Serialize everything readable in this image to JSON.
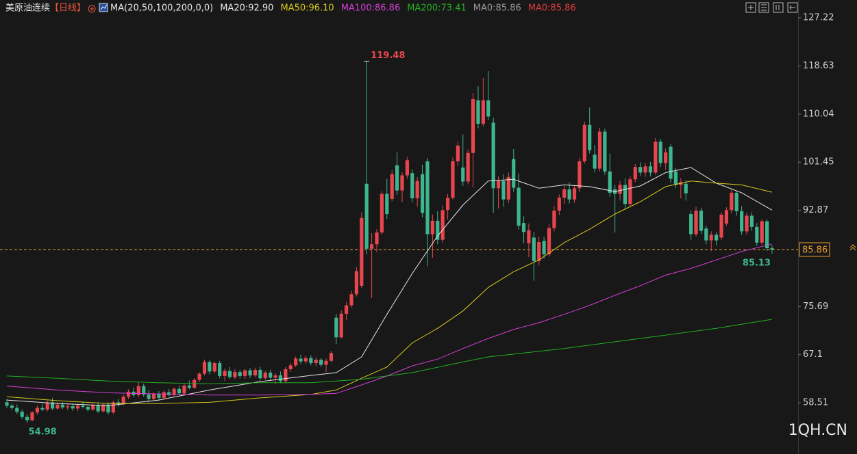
{
  "chart_data": {
    "type": "candlestick",
    "title": "美原油连续",
    "period": "【日线】",
    "indicator": "MA(20,50,100,200,0,0)",
    "up_color": "#e8464f",
    "down_color": "#3db58e",
    "last_price_color": "#f0a030",
    "watermark": "1QH.CN",
    "ylim": [
      50,
      128
    ],
    "yticks": [
      127.22,
      118.63,
      110.04,
      101.45,
      92.87,
      75.69,
      67.1,
      58.51
    ],
    "grid": false,
    "open": [
      58.6,
      58.0,
      57.6,
      56.9,
      56.0,
      55.4,
      56.8,
      57.6,
      57.3,
      58.6,
      57.5,
      58.2,
      57.7,
      57.9,
      57.5,
      58.0,
      57.8,
      57.3,
      58.1,
      57.0,
      58.2,
      56.8,
      58.6,
      58.3,
      59.6,
      60.5,
      59.9,
      61.5,
      60.0,
      59.2,
      60.1,
      59.4,
      60.4,
      59.9,
      61.0,
      60.2,
      61.6,
      61.2,
      62.6,
      63.7,
      65.8,
      64.1,
      65.6,
      63.3,
      64.2,
      63.1,
      64.0,
      63.3,
      64.3,
      63.4,
      64.4,
      62.9,
      63.9,
      63.0,
      63.4,
      62.4,
      64.5,
      65.2,
      66.4,
      65.9,
      66.5,
      65.6,
      66.2,
      65.3,
      66.0,
      73.7,
      70.2,
      74.4,
      75.9,
      77.9,
      79.4,
      97.6,
      86.0,
      86.8,
      88.9,
      95.8,
      94.9,
      100.9,
      96.4,
      99.1,
      99.5,
      95.0,
      99.3,
      101.6,
      88.6,
      91.0,
      87.6,
      92.9,
      95.1,
      101.6,
      100.5,
      98.0,
      103.1,
      112.5,
      108.3,
      112.5,
      108.5,
      96.8,
      98.1,
      94.8,
      102.0,
      96.9,
      90.6,
      87.0,
      88.0,
      83.8,
      87.4,
      85.0,
      89.7,
      92.8,
      95.1,
      96.6,
      94.8,
      96.8,
      101.6,
      108.1,
      102.8,
      100.3,
      106.9,
      99.8,
      96.6,
      95.8,
      97.4,
      94.0,
      98.4,
      100.6,
      99.6,
      100.7,
      99.6,
      105.1,
      101.3,
      104.2,
      99.8,
      97.4,
      97.6,
      92.2,
      88.6,
      92.8,
      89.6,
      87.5,
      88.5,
      88.0,
      90.5,
      92.9,
      96.0,
      92.7,
      89.1,
      91.9,
      89.9,
      87.1,
      90.9,
      86.1
    ],
    "high": [
      59.2,
      58.4,
      58.2,
      57.3,
      56.5,
      57.0,
      58.0,
      58.3,
      58.9,
      59.4,
      58.6,
      58.6,
      58.4,
      58.4,
      58.3,
      58.7,
      58.2,
      58.4,
      58.6,
      58.5,
      58.6,
      58.9,
      59.2,
      60.0,
      60.9,
      61.2,
      62.3,
      61.9,
      60.8,
      60.4,
      60.6,
      60.7,
      61.0,
      61.3,
      61.6,
      61.9,
      62.5,
      62.9,
      64.0,
      66.2,
      66.1,
      65.9,
      66.0,
      64.6,
      64.9,
      64.5,
      64.4,
      64.6,
      64.7,
      64.8,
      64.9,
      64.2,
      64.4,
      63.8,
      64.1,
      64.9,
      65.6,
      66.8,
      67.1,
      66.9,
      67.0,
      66.6,
      66.5,
      66.4,
      67.8,
      74.4,
      75.0,
      76.5,
      78.5,
      82.7,
      92.5,
      119.48,
      88.8,
      89.5,
      96.3,
      98.5,
      100.0,
      103.2,
      99.7,
      102.4,
      100.2,
      98.8,
      101.0,
      102.2,
      92.1,
      92.7,
      93.7,
      95.8,
      102.3,
      105.1,
      106.4,
      103.7,
      113.8,
      115.0,
      116.5,
      117.7,
      109.4,
      98.9,
      99.3,
      99.6,
      103.8,
      99.4,
      91.8,
      90.5,
      89.0,
      88.2,
      88.1,
      90.4,
      93.6,
      95.7,
      97.3,
      97.8,
      97.3,
      102.2,
      108.7,
      111.2,
      104.5,
      107.6,
      107.4,
      103.0,
      97.4,
      98.1,
      98.6,
      98.9,
      101.1,
      101.4,
      101.3,
      101.5,
      105.8,
      105.6,
      103.9,
      104.7,
      100.4,
      98.6,
      98.3,
      92.8,
      93.5,
      93.3,
      90.1,
      89.1,
      89.0,
      92.5,
      93.4,
      96.7,
      96.4,
      93.6,
      92.4,
      92.5,
      90.6,
      91.3,
      91.2,
      86.6
    ],
    "low": [
      57.6,
      57.2,
      56.5,
      55.6,
      54.98,
      55.2,
      56.4,
      57.0,
      57.0,
      57.2,
      57.3,
      57.4,
      57.2,
      57.1,
      57.0,
      57.5,
      56.9,
      57.1,
      56.7,
      56.8,
      56.4,
      56.5,
      57.8,
      58.0,
      59.2,
      59.5,
      59.5,
      59.6,
      58.6,
      58.9,
      59.0,
      59.1,
      59.6,
      59.7,
      59.8,
      60.0,
      60.9,
      61.0,
      62.2,
      63.4,
      63.6,
      63.8,
      62.9,
      62.4,
      62.8,
      62.7,
      62.9,
      62.8,
      62.9,
      63.1,
      62.5,
      62.6,
      62.6,
      61.9,
      62.0,
      62.0,
      64.0,
      64.9,
      65.4,
      65.5,
      65.2,
      65.1,
      64.9,
      64.0,
      65.7,
      69.0,
      70.0,
      73.3,
      75.5,
      77.5,
      79.0,
      85.0,
      77.2,
      85.4,
      88.5,
      91.3,
      94.5,
      95.6,
      94.3,
      98.5,
      94.3,
      93.5,
      91.6,
      82.9,
      84.4,
      86.8,
      87.1,
      91.2,
      94.8,
      100.8,
      97.2,
      97.5,
      96.9,
      107.5,
      107.8,
      109.0,
      92.4,
      93.2,
      93.5,
      94.2,
      96.2,
      89.4,
      87.0,
      84.5,
      80.3,
      83.0,
      84.2,
      84.6,
      89.1,
      92.0,
      94.0,
      94.1,
      94.2,
      96.1,
      101.2,
      103.0,
      99.6,
      99.8,
      99.2,
      95.3,
      88.9,
      94.6,
      93.0,
      93.6,
      97.9,
      99.0,
      98.8,
      98.9,
      99.2,
      100.6,
      100.1,
      97.8,
      96.8,
      95.0,
      94.6,
      87.6,
      88.2,
      88.6,
      86.8,
      85.6,
      86.6,
      87.6,
      90.1,
      92.3,
      91.9,
      88.5,
      88.6,
      89.2,
      86.5,
      86.7,
      85.6,
      85.13
    ],
    "close": [
      58.0,
      57.6,
      56.9,
      56.0,
      55.4,
      56.8,
      57.6,
      57.3,
      58.6,
      57.5,
      58.2,
      57.7,
      57.9,
      57.5,
      58.0,
      57.8,
      57.3,
      58.1,
      57.0,
      58.2,
      56.8,
      58.6,
      58.3,
      59.6,
      60.5,
      59.9,
      61.5,
      60.0,
      59.2,
      60.1,
      59.4,
      60.4,
      59.9,
      61.0,
      60.2,
      61.6,
      61.2,
      62.6,
      63.7,
      65.8,
      64.1,
      65.6,
      63.3,
      64.2,
      63.1,
      64.0,
      63.3,
      64.3,
      63.4,
      64.4,
      62.9,
      63.9,
      63.0,
      63.4,
      62.4,
      64.5,
      65.2,
      66.4,
      65.9,
      66.5,
      65.6,
      66.2,
      65.3,
      66.0,
      67.4,
      70.2,
      74.4,
      75.9,
      77.9,
      82.0,
      91.5,
      86.0,
      86.8,
      88.9,
      95.8,
      92.2,
      99.3,
      96.4,
      99.1,
      101.8,
      95.0,
      98.1,
      92.4,
      88.6,
      91.0,
      87.6,
      92.9,
      95.1,
      101.6,
      104.4,
      98.0,
      103.1,
      112.7,
      108.3,
      112.5,
      109.6,
      96.8,
      98.1,
      94.8,
      98.8,
      96.9,
      90.1,
      89.0,
      89.3,
      83.8,
      87.2,
      85.0,
      89.7,
      92.8,
      95.1,
      96.6,
      94.8,
      96.8,
      101.6,
      108.1,
      103.6,
      100.3,
      106.9,
      99.8,
      96.0,
      95.8,
      97.4,
      94.0,
      98.4,
      100.6,
      99.6,
      100.7,
      99.6,
      105.1,
      101.3,
      103.2,
      98.5,
      97.4,
      97.9,
      95.9,
      88.6,
      92.8,
      89.2,
      87.5,
      88.5,
      87.5,
      92.1,
      92.9,
      96.0,
      92.7,
      89.1,
      91.9,
      89.9,
      87.1,
      90.9,
      86.1,
      85.86
    ],
    "ma_lines": [
      {
        "name": "MA20:92.90",
        "color": "#e6e6e6",
        "x": [
          0,
          10,
          20,
          30,
          40,
          50,
          60,
          65,
          70,
          75,
          80,
          85,
          90,
          95,
          100,
          105,
          110,
          115,
          120,
          125,
          130,
          135,
          140,
          145,
          151
        ],
        "values": [
          59.0,
          58.4,
          58.0,
          59.0,
          60.8,
          62.3,
          63.4,
          63.9,
          66.7,
          74.3,
          81.6,
          88.3,
          93.8,
          98.1,
          98.4,
          96.8,
          97.4,
          97.1,
          96.2,
          97.2,
          99.6,
          100.5,
          97.7,
          96.0,
          92.9
        ]
      },
      {
        "name": "MA50:96.10",
        "color": "#d9c81e",
        "x": [
          0,
          10,
          20,
          30,
          40,
          50,
          60,
          65,
          70,
          75,
          80,
          85,
          90,
          95,
          100,
          105,
          110,
          115,
          120,
          125,
          130,
          135,
          140,
          145,
          151
        ],
        "values": [
          59.6,
          58.9,
          58.4,
          58.4,
          58.6,
          59.4,
          60.0,
          60.8,
          62.9,
          64.9,
          69.2,
          71.8,
          74.9,
          79.1,
          81.9,
          84.0,
          87.1,
          89.5,
          92.2,
          94.4,
          97.1,
          98.1,
          97.7,
          97.4,
          96.1
        ]
      },
      {
        "name": "MA100:86.86",
        "color": "#d43fd4",
        "x": [
          0,
          10,
          20,
          30,
          40,
          50,
          60,
          65,
          70,
          75,
          80,
          85,
          90,
          95,
          100,
          105,
          110,
          115,
          120,
          125,
          130,
          135,
          140,
          145,
          151
        ],
        "values": [
          61.5,
          60.8,
          60.3,
          60.1,
          59.9,
          59.9,
          60.0,
          60.2,
          61.7,
          63.3,
          65.1,
          66.3,
          68.2,
          70.0,
          71.6,
          72.8,
          74.3,
          75.9,
          77.7,
          79.4,
          81.3,
          82.5,
          84.0,
          85.5,
          86.86
        ]
      },
      {
        "name": "MA200:73.41",
        "color": "#22b022",
        "x": [
          0,
          10,
          20,
          30,
          40,
          50,
          60,
          70,
          80,
          90,
          95,
          100,
          110,
          120,
          130,
          140,
          151
        ],
        "values": [
          63.3,
          62.9,
          62.4,
          62.1,
          61.9,
          62.1,
          62.1,
          62.7,
          63.9,
          65.8,
          66.7,
          67.2,
          68.2,
          69.4,
          70.6,
          71.8,
          73.41
        ]
      },
      {
        "name": "MA0:85.86",
        "color": "#9a9a9a"
      },
      {
        "name": "MA0:85.86",
        "color": "#e03c3c"
      }
    ]
  }
}
